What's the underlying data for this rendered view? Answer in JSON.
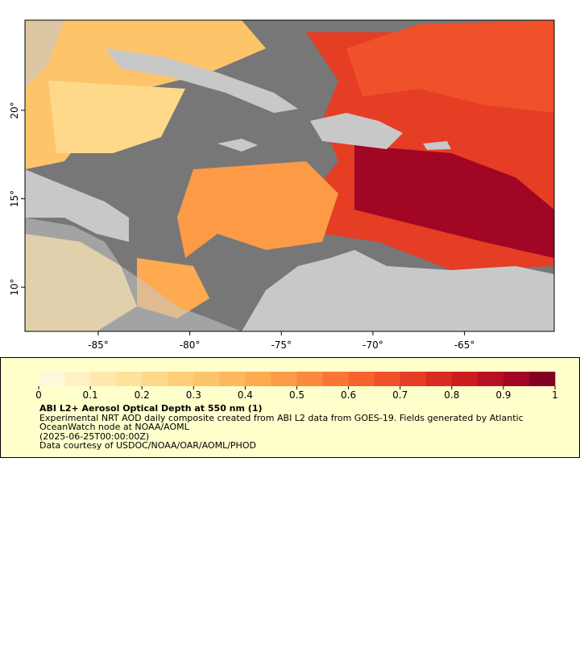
{
  "chart_data": {
    "type": "map",
    "xlim": [
      -89,
      -60.1
    ],
    "ylim": [
      7.5,
      25.1
    ],
    "xticks": [
      {
        "value": -85,
        "label": "-85°"
      },
      {
        "value": -80,
        "label": "-80°"
      },
      {
        "value": -75,
        "label": "-75°"
      },
      {
        "value": -70,
        "label": "-70°"
      },
      {
        "value": -65,
        "label": "-65°"
      }
    ],
    "yticks": [
      {
        "value": 10,
        "label": "10°"
      },
      {
        "value": 15,
        "label": "15°"
      },
      {
        "value": 20,
        "label": "20°"
      }
    ],
    "colorbar": {
      "lim": [
        0,
        1
      ],
      "ticks": [
        0,
        0.1,
        0.2,
        0.3,
        0.4,
        0.5,
        0.6,
        0.7,
        0.8,
        0.9,
        1
      ],
      "colors": [
        "#fff8dc",
        "#fff1c4",
        "#ffe9ae",
        "#fee29c",
        "#fed98a",
        "#fecf78",
        "#fdc46a",
        "#fdb85c",
        "#fdaa50",
        "#fc9a46",
        "#fc8a3e",
        "#fa7636",
        "#f6632f",
        "#f0502a",
        "#e63d25",
        "#db2a21",
        "#cd1b20",
        "#b90f22",
        "#a10624",
        "#830023"
      ]
    },
    "title": "ABI L2+ Aerosol Optical Depth at 550 nm (1)",
    "notes": [
      "Experimental NRT AOD daily composite created from ABI L2 data from GOES-19. Fields generated by Atlantic OceanWatch node at NOAA/AOML",
      "(2025-06-25T00:00:00Z)",
      "Data courtesy of USDOC/NOAA/OAR/AOML/PHOD"
    ]
  }
}
